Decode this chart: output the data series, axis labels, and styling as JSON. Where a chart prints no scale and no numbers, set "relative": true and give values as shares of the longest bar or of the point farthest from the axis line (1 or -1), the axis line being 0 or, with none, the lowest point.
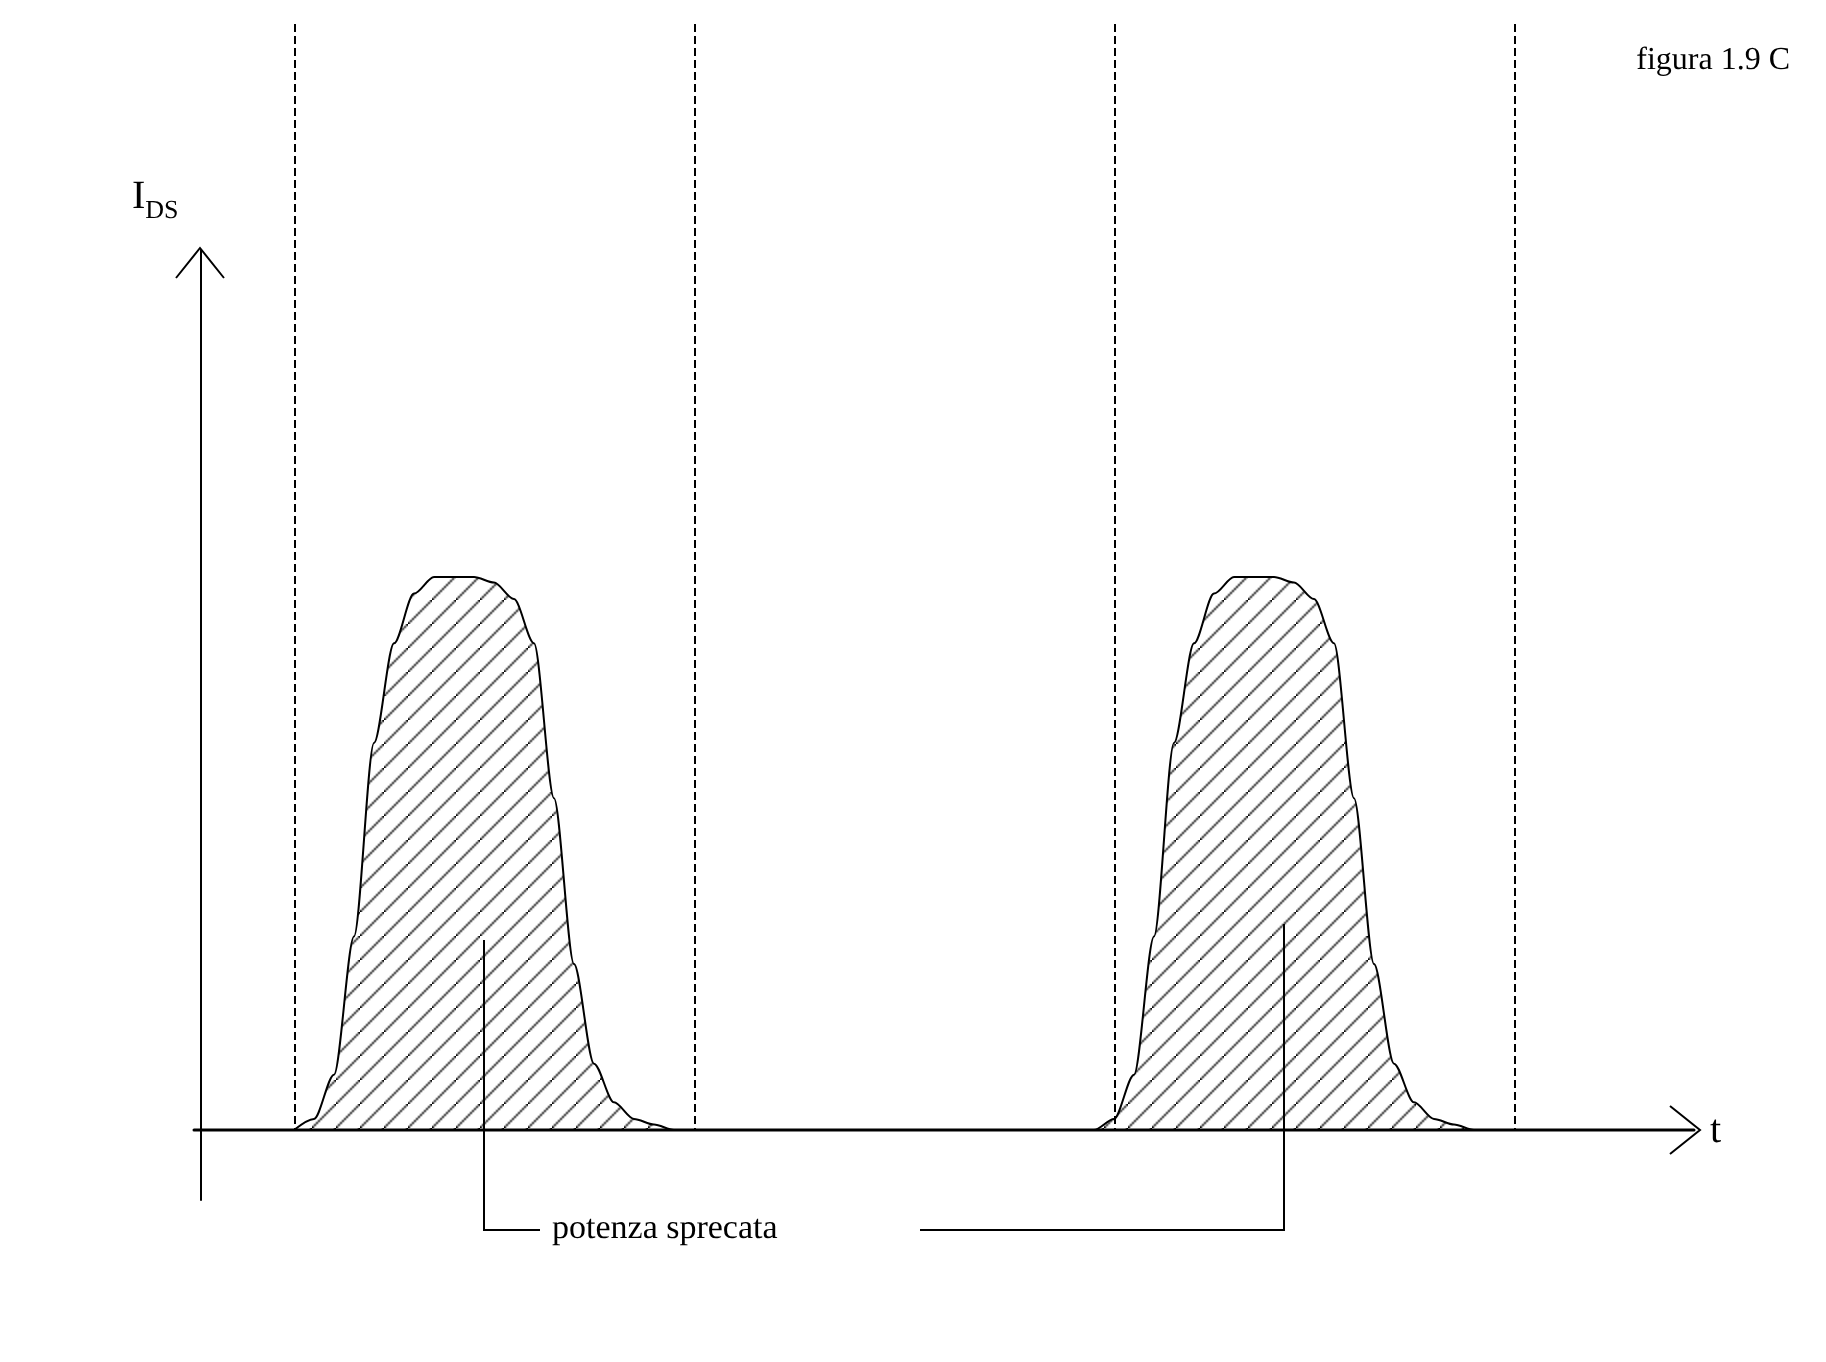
{
  "chart_data": {
    "type": "area",
    "relative": true,
    "xlabel": "t",
    "annotations": [
      "figura 1.9 C",
      "potenza sprecata",
      "I$_{DS}$"
    ],
    "categories": [
      null,
      null,
      null,
      null,
      null,
      null,
      null,
      null,
      null,
      null,
      null,
      null,
      null,
      null,
      null,
      null,
      null,
      null,
      null,
      null,
      null,
      null,
      null,
      null,
      null,
      null,
      null,
      null,
      null,
      null,
      null,
      null,
      null,
      null,
      null,
      null,
      null,
      null,
      null,
      null,
      null,
      null,
      null,
      null,
      null,
      null,
      null,
      null,
      null,
      null,
      null,
      null,
      null,
      null,
      null,
      null,
      null,
      null,
      null,
      null,
      null,
      null,
      null,
      null,
      null,
      null,
      null,
      null,
      null,
      null,
      null,
      null,
      null,
      null,
      null,
      null
    ],
    "series": [
      {
        "color": "#000000",
        "values": [
          null,
          null,
          null,
          null,
          null,
          0,
          0.02,
          0.1,
          0.35,
          0.7,
          0.88,
          0.97,
          1,
          1,
          1,
          0.99,
          0.96,
          0.88,
          0.6,
          0.3,
          0.12,
          0.05,
          0.02,
          0.01,
          0,
          0,
          0,
          0,
          0,
          0,
          0,
          0,
          0,
          0,
          0,
          0,
          0,
          0,
          0,
          0,
          0,
          0,
          0,
          0,
          0,
          0,
          0.02,
          0.1,
          0.35,
          0.7,
          0.88,
          0.97,
          1,
          1,
          1,
          0.99,
          0.96,
          0.88,
          0.6,
          0.3,
          0.12,
          0.05,
          0.02,
          0.01,
          0,
          0,
          null,
          null,
          null,
          null,
          null,
          null,
          null,
          null,
          null,
          null
        ]
      }
    ],
    "grid": "x",
    "marker": "none",
    "line_style": "solid"
  }
}
